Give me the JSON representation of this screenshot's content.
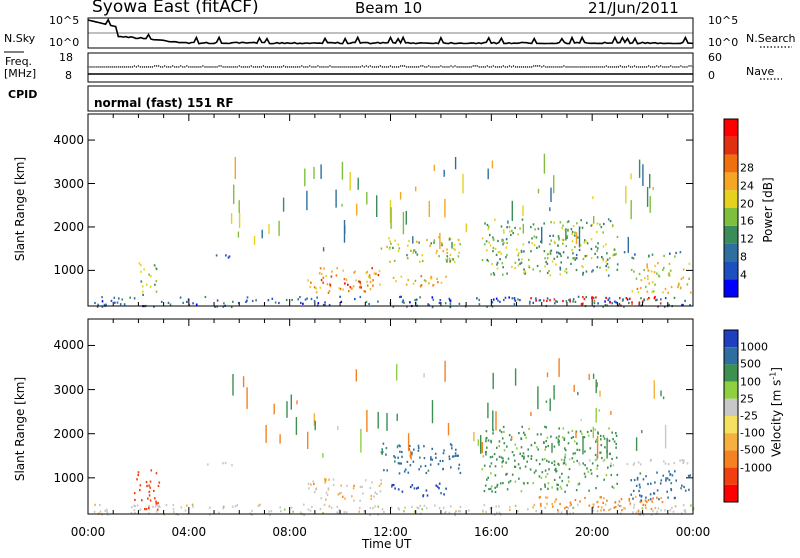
{
  "header": {
    "station": "Syowa East (fitACF)",
    "beam": "Beam 10",
    "date": "21/Jun/2011"
  },
  "status_panels": {
    "nsky_label": "N.Sky",
    "nsky_ticks": [
      "10^5",
      "10^0"
    ],
    "nsearch_label": "N.Search",
    "nsearch_ticks": [
      "10^5",
      "10^0"
    ],
    "freq_label": "Freq.",
    "freq_unit": "[MHz]",
    "freq_ticks": [
      "18",
      "8"
    ],
    "nave_label": "Nave",
    "nave_ticks": [
      "60",
      "0"
    ],
    "cpid_label": "CPID",
    "cpid_value": "normal (fast) 151 RF"
  },
  "colors": {
    "power_scale": [
      "#0000ff",
      "#1f4fbf",
      "#2f6fa0",
      "#3c8c5a",
      "#7fbf3f",
      "#e6d21e",
      "#f5a623",
      "#f07010",
      "#e03010",
      "#ff0000"
    ],
    "velocity_scale": [
      "#ff0000",
      "#f04010",
      "#f58220",
      "#f5b040",
      "#f5e060",
      "#c8c8c8",
      "#8fd040",
      "#3c9050",
      "#2f6fa0",
      "#1f3fbf"
    ]
  },
  "chart_data": [
    {
      "type": "heatmap",
      "title": "",
      "xlabel": "",
      "ylabel": "Slant Range [km]",
      "xlim": [
        "00:00",
        "24:00"
      ],
      "ylim": [
        180,
        4600
      ],
      "yticks": [
        "1000",
        "2000",
        "3000",
        "4000"
      ],
      "colorbar_label": "Power [dB]",
      "colorbar_ticks": [
        "4",
        "8",
        "12",
        "16",
        "20",
        "24",
        "28"
      ],
      "regions": [
        {
          "t": [
            0.2,
            24
          ],
          "r": [
            180,
            420
          ],
          "value": 6
        },
        {
          "t": [
            2.0,
            2.7
          ],
          "r": [
            450,
            1200
          ],
          "value": 12
        },
        {
          "t": [
            4.6,
            5.8
          ],
          "r": [
            1300,
            1400
          ],
          "value": 8
        },
        {
          "t": [
            8.7,
            11.6
          ],
          "r": [
            500,
            1100
          ],
          "value": 20
        },
        {
          "t": [
            9.8,
            11.3
          ],
          "r": [
            600,
            800
          ],
          "value": 24
        },
        {
          "t": [
            11.6,
            14.8
          ],
          "r": [
            1200,
            1800
          ],
          "value": 14
        },
        {
          "t": [
            12.0,
            14.2
          ],
          "r": [
            600,
            900
          ],
          "value": 18
        },
        {
          "t": [
            15.6,
            21.0
          ],
          "r": [
            900,
            2200
          ],
          "value": 12
        },
        {
          "t": [
            17.2,
            22.8
          ],
          "r": [
            250,
            420
          ],
          "value": 28
        },
        {
          "t": [
            18.8,
            23.8
          ],
          "r": [
            1300,
            1450
          ],
          "value": 8
        },
        {
          "t": [
            21.5,
            23.9
          ],
          "r": [
            500,
            1200
          ],
          "value": 16
        }
      ]
    },
    {
      "type": "heatmap",
      "title": "",
      "xlabel": "Time UT",
      "ylabel": "Slant Range [km]",
      "xlim": [
        "00:00",
        "24:00"
      ],
      "ylim": [
        180,
        4600
      ],
      "xticks": [
        "00:00",
        "04:00",
        "08:00",
        "12:00",
        "16:00",
        "20:00",
        "00:00"
      ],
      "yticks": [
        "1000",
        "2000",
        "3000",
        "4000"
      ],
      "colorbar_label": "Velocity [m s^-1]",
      "colorbar_ticks": [
        "1000",
        "500",
        "100",
        "25",
        "-25",
        "-100",
        "-500",
        "-1000"
      ],
      "regions": [
        {
          "t": [
            0.2,
            24
          ],
          "r": [
            180,
            420
          ],
          "value": 0
        },
        {
          "t": [
            1.8,
            2.8
          ],
          "r": [
            300,
            1200
          ],
          "value": -500
        },
        {
          "t": [
            4.6,
            5.8
          ],
          "r": [
            1300,
            1400
          ],
          "value": 0
        },
        {
          "t": [
            8.7,
            11.6
          ],
          "r": [
            500,
            1000
          ],
          "value": -25
        },
        {
          "t": [
            11.6,
            14.8
          ],
          "r": [
            1100,
            1800
          ],
          "value": 500
        },
        {
          "t": [
            12.0,
            14.2
          ],
          "r": [
            600,
            900
          ],
          "value": 1000
        },
        {
          "t": [
            15.6,
            21.0
          ],
          "r": [
            700,
            2200
          ],
          "value": 100
        },
        {
          "t": [
            17.2,
            22.8
          ],
          "r": [
            250,
            600
          ],
          "value": -100
        },
        {
          "t": [
            18.8,
            23.8
          ],
          "r": [
            1300,
            1450
          ],
          "value": 0
        },
        {
          "t": [
            21.5,
            23.9
          ],
          "r": [
            500,
            1200
          ],
          "value": 500
        }
      ]
    }
  ]
}
